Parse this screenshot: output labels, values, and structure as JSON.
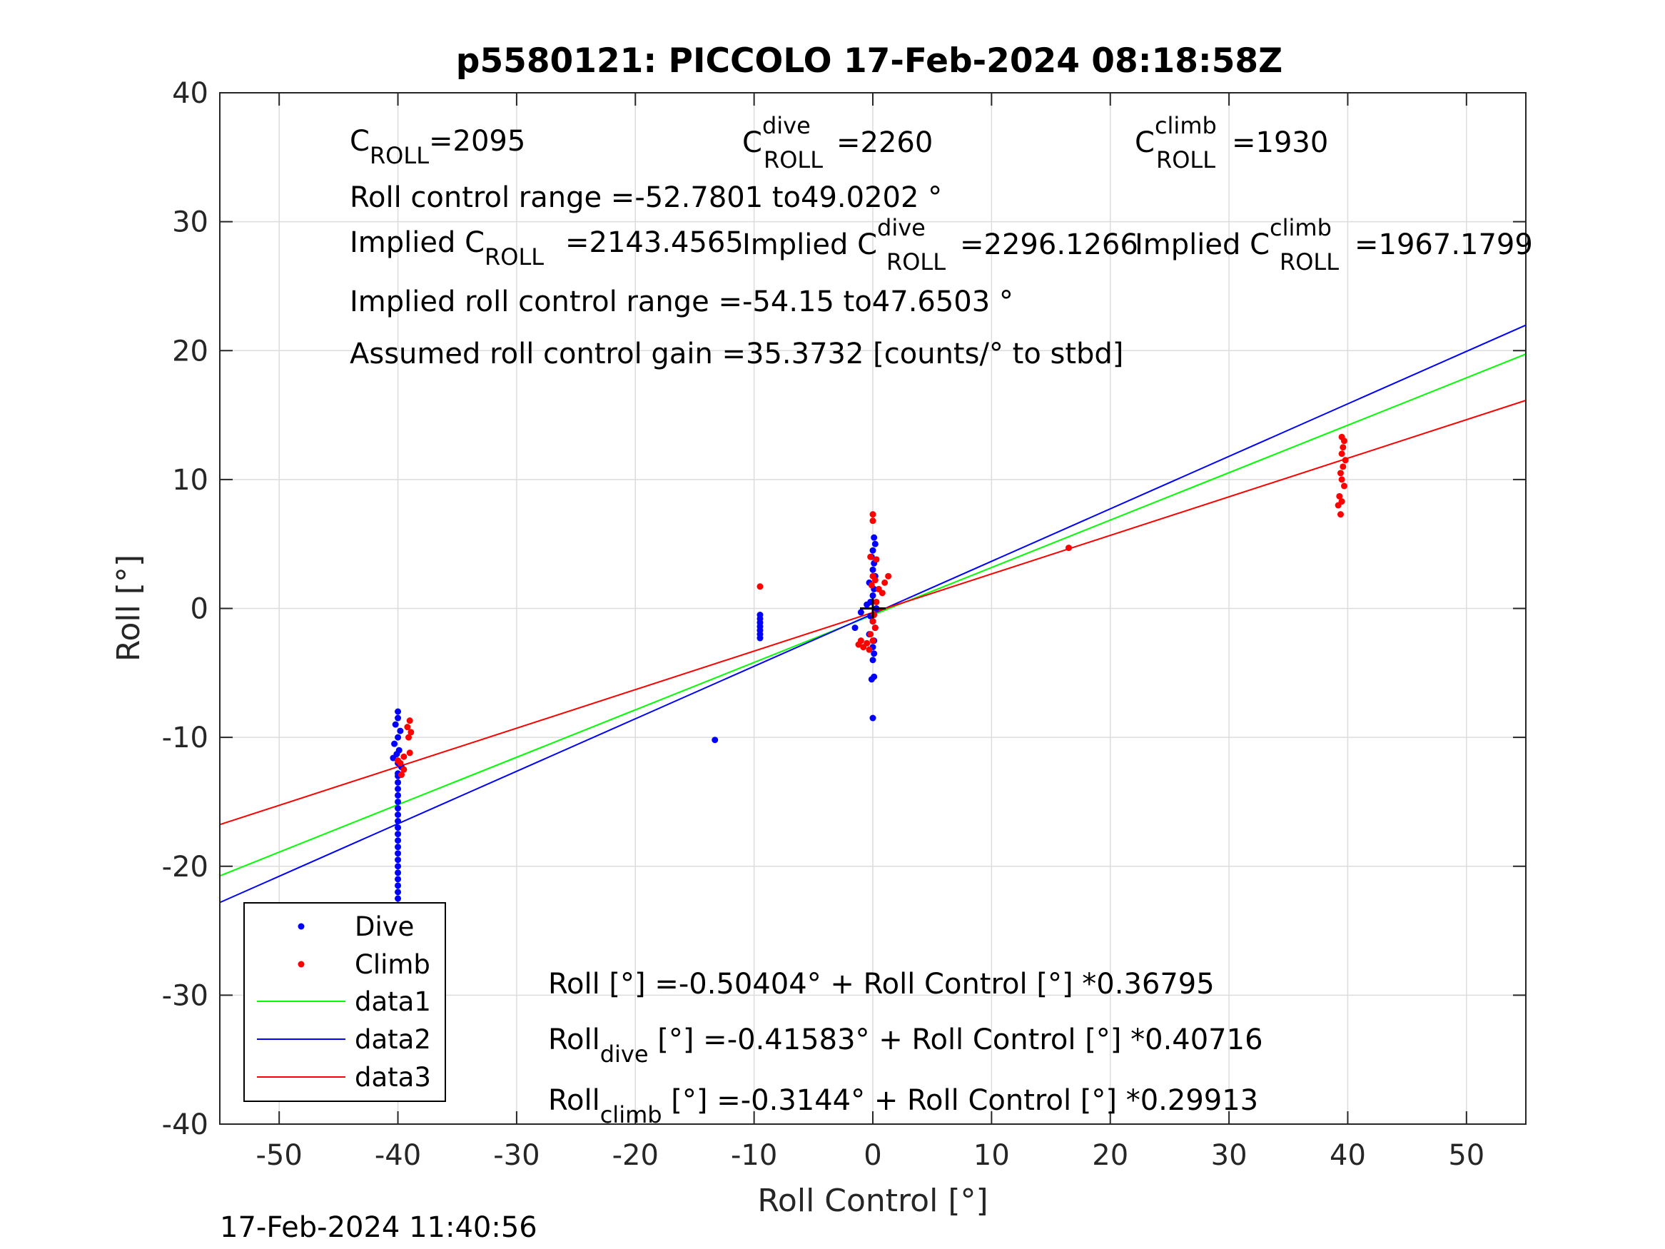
{
  "chart_data": {
    "type": "scatter",
    "title": "p5580121: PICCOLO 17-Feb-2024 08:18:58Z",
    "xlabel": "Roll Control [°]",
    "ylabel": "Roll [°]",
    "xlim": [
      -55,
      55
    ],
    "ylim": [
      -40,
      40
    ],
    "xticks": [
      -50,
      -40,
      -30,
      -20,
      -10,
      0,
      10,
      20,
      30,
      40,
      50
    ],
    "yticks": [
      -40,
      -30,
      -20,
      -10,
      0,
      10,
      20,
      30,
      40
    ],
    "grid": true,
    "legend_position": "bottom-left",
    "timestamp": "17-Feb-2024 11:40:56",
    "colors": {
      "dive": "#0000ff",
      "climb": "#ff0000",
      "data1": "#00ff00",
      "data2": "#0000ff",
      "data3": "#ff0000"
    },
    "series": [
      {
        "name": "Dive",
        "kind": "points",
        "color": "#0000ff",
        "points": [
          [
            -40,
            -8
          ],
          [
            -40,
            -8.5
          ],
          [
            -40.2,
            -9
          ],
          [
            -39.8,
            -9.5
          ],
          [
            -40,
            -10
          ],
          [
            -40.3,
            -10.5
          ],
          [
            -39.9,
            -11
          ],
          [
            -40.1,
            -11.3
          ],
          [
            -40.4,
            -11.6
          ],
          [
            -40,
            -12
          ],
          [
            -39.7,
            -12.3
          ],
          [
            -40,
            -12.8
          ],
          [
            -40,
            -13
          ],
          [
            -40,
            -13.5
          ],
          [
            -40,
            -14
          ],
          [
            -40,
            -14.5
          ],
          [
            -40,
            -15
          ],
          [
            -40,
            -15.5
          ],
          [
            -40,
            -16
          ],
          [
            -40,
            -16.5
          ],
          [
            -40,
            -17
          ],
          [
            -40,
            -17.5
          ],
          [
            -40,
            -18
          ],
          [
            -40,
            -18.5
          ],
          [
            -40,
            -19
          ],
          [
            -40,
            -19.5
          ],
          [
            -40,
            -20
          ],
          [
            -40,
            -20.5
          ],
          [
            -40,
            -21
          ],
          [
            -40,
            -21.5
          ],
          [
            -40,
            -22
          ],
          [
            -40,
            -22.5
          ],
          [
            -40,
            -23
          ],
          [
            -40,
            -23.5
          ],
          [
            -40,
            -24
          ],
          [
            -40,
            -24.5
          ],
          [
            -40,
            -25
          ],
          [
            -40,
            -25.5
          ],
          [
            -40,
            -26
          ],
          [
            -40,
            -26.5
          ],
          [
            -40,
            -27
          ],
          [
            -40,
            -27.5
          ],
          [
            -40,
            -28
          ],
          [
            -40,
            -28.5
          ],
          [
            -40,
            -29
          ],
          [
            -40,
            -29.5
          ],
          [
            -40,
            -30
          ],
          [
            -40,
            -30.5
          ],
          [
            -40,
            -31
          ],
          [
            -40,
            -31.5
          ],
          [
            -40,
            -32
          ],
          [
            -40,
            -32.5
          ],
          [
            -40,
            -33
          ],
          [
            -40,
            -33.5
          ],
          [
            -40,
            -34
          ],
          [
            -40,
            -34.5
          ],
          [
            -40,
            -35
          ],
          [
            -40,
            -37.3
          ],
          [
            -9.5,
            -0.5
          ],
          [
            -9.5,
            -0.8
          ],
          [
            -9.5,
            -1.1
          ],
          [
            -9.5,
            -1.4
          ],
          [
            -9.5,
            -1.7
          ],
          [
            -9.5,
            -2.0
          ],
          [
            -9.5,
            -2.3
          ],
          [
            -13.3,
            -10.2
          ],
          [
            0,
            -8.5
          ],
          [
            0.1,
            5.5
          ],
          [
            0.2,
            5.0
          ],
          [
            0,
            4.5
          ],
          [
            -0.1,
            4.0
          ],
          [
            0.1,
            3.5
          ],
          [
            0,
            3.0
          ],
          [
            0.2,
            2.5
          ],
          [
            -0.3,
            2.0
          ],
          [
            0.1,
            1.5
          ],
          [
            0,
            1.0
          ],
          [
            -0.2,
            0.5
          ],
          [
            -0.5,
            0.3
          ],
          [
            0.3,
            0
          ],
          [
            -1,
            -0.3
          ],
          [
            -0.2,
            -0.6
          ],
          [
            0,
            -1.0
          ],
          [
            0.2,
            -1.5
          ],
          [
            -0.3,
            -2.0
          ],
          [
            0.1,
            -2.5
          ],
          [
            0,
            -3.0
          ],
          [
            0.1,
            -3.5
          ],
          [
            0,
            -4.0
          ],
          [
            -0.1,
            -5.5
          ],
          [
            0.1,
            -5.3
          ],
          [
            -1.5,
            -1.5
          ]
        ]
      },
      {
        "name": "Climb",
        "kind": "points",
        "color": "#ff0000",
        "points": [
          [
            -39,
            -8.7
          ],
          [
            -39.2,
            -9.2
          ],
          [
            -38.9,
            -9.6
          ],
          [
            -39.1,
            -10
          ],
          [
            -39.5,
            -11.5
          ],
          [
            -39,
            -11.2
          ],
          [
            -39.8,
            -12
          ],
          [
            -39.5,
            -12.5
          ],
          [
            -39.7,
            -12.9
          ],
          [
            -40,
            -11.8
          ],
          [
            -9.5,
            1.7
          ],
          [
            0,
            7.3
          ],
          [
            0,
            6.8
          ],
          [
            -0.2,
            4.0
          ],
          [
            0.3,
            3.8
          ],
          [
            0,
            2.5
          ],
          [
            0.2,
            2.2
          ],
          [
            -0.1,
            1.8
          ],
          [
            0.5,
            1.5
          ],
          [
            1,
            2.0
          ],
          [
            1.3,
            2.5
          ],
          [
            0.8,
            1.2
          ],
          [
            0.3,
            0.5
          ],
          [
            0.1,
            -0.5
          ],
          [
            0,
            -1.0
          ],
          [
            0.2,
            -1.5
          ],
          [
            -0.2,
            -2.0
          ],
          [
            0,
            -2.5
          ],
          [
            -1,
            -2.5
          ],
          [
            -0.5,
            -2.7
          ],
          [
            -0.8,
            -3.0
          ],
          [
            -0.3,
            -3.2
          ],
          [
            -1.2,
            -2.8
          ],
          [
            16.5,
            4.7
          ],
          [
            39.5,
            13.3
          ],
          [
            39.7,
            13.0
          ],
          [
            39.6,
            12.5
          ],
          [
            39.5,
            12.0
          ],
          [
            39.8,
            11.5
          ],
          [
            39.6,
            11.0
          ],
          [
            39.4,
            10.5
          ],
          [
            39.5,
            10.0
          ],
          [
            39.7,
            9.5
          ],
          [
            39.3,
            8.7
          ],
          [
            39.5,
            8.3
          ],
          [
            39.2,
            8.0
          ],
          [
            39.4,
            7.3
          ]
        ]
      },
      {
        "name": "data1",
        "kind": "line",
        "color": "#00ff00",
        "intercept": -0.50404,
        "slope": 0.36795
      },
      {
        "name": "data2",
        "kind": "line",
        "color": "#0000ff",
        "intercept": -0.41583,
        "slope": 0.40716
      },
      {
        "name": "data3",
        "kind": "line",
        "color": "#ff0000",
        "intercept": -0.3144,
        "slope": 0.29913
      }
    ],
    "center_marker": {
      "x": 0,
      "y": 0,
      "color": "#000000"
    },
    "annotations": {
      "c_roll": {
        "base": "C",
        "sub": "ROLL",
        "value": "=2095"
      },
      "c_roll_dive": {
        "base": "C",
        "sup": "dive",
        "sub": "ROLL",
        "value": "=2260"
      },
      "c_roll_climb": {
        "base": "C",
        "sup": "climb",
        "sub": "ROLL",
        "value": "=1930"
      },
      "roll_control_range": "Roll control range =-52.7801 to49.0202 °",
      "implied_c_roll": {
        "prefix": "Implied C",
        "sub": "ROLL",
        "value": "=2143.4565"
      },
      "implied_c_roll_dive": {
        "prefix": "Implied C",
        "sup": "dive",
        "sub": "ROLL",
        "value": "=2296.1266"
      },
      "implied_c_roll_climb": {
        "prefix": "Implied C",
        "sup": "climb",
        "sub": "ROLL",
        "value": "=1967.1799"
      },
      "implied_range": "Implied roll control range =-54.15 to47.6503 °",
      "assumed_gain": "Assumed roll control gain =35.3732 [counts/° to stbd]",
      "fit_all": "Roll [°] =-0.50404° + Roll Control [°] *0.36795",
      "fit_dive": {
        "base": "Roll",
        "sub": "dive",
        "rest": " [°] =-0.41583° + Roll Control [°] *0.40716"
      },
      "fit_climb": {
        "base": "Roll",
        "sub": "climb",
        "rest": " [°] =-0.3144° + Roll Control [°] *0.29913"
      }
    }
  }
}
